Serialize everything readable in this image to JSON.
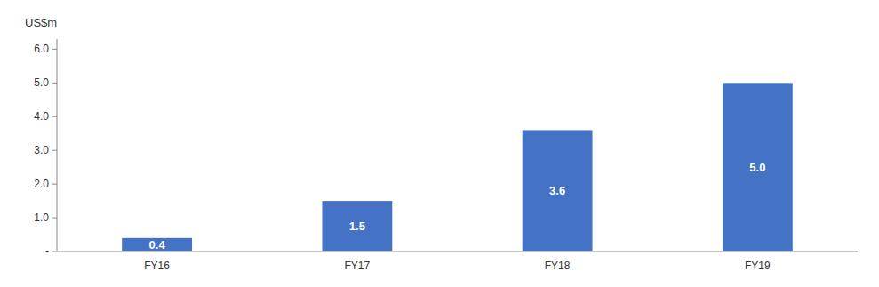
{
  "chart_data": {
    "type": "bar",
    "ylabel": "US$m",
    "categories": [
      "FY16",
      "FY17",
      "FY18",
      "FY19"
    ],
    "values": [
      0.4,
      1.5,
      3.6,
      5.0
    ],
    "value_labels": [
      "0.4",
      "1.5",
      "3.6",
      "5.0"
    ],
    "data_labels": true,
    "color": "#4472C4",
    "ylim": [
      0,
      6.3
    ],
    "yticks": [
      {
        "value": 0.0,
        "label": "-"
      },
      {
        "value": 1.0,
        "label": "1.0"
      },
      {
        "value": 2.0,
        "label": "2.0"
      },
      {
        "value": 3.0,
        "label": "3.0"
      },
      {
        "value": 4.0,
        "label": "4.0"
      },
      {
        "value": 5.0,
        "label": "5.0"
      },
      {
        "value": 6.0,
        "label": "6.0"
      }
    ],
    "grid": false
  }
}
